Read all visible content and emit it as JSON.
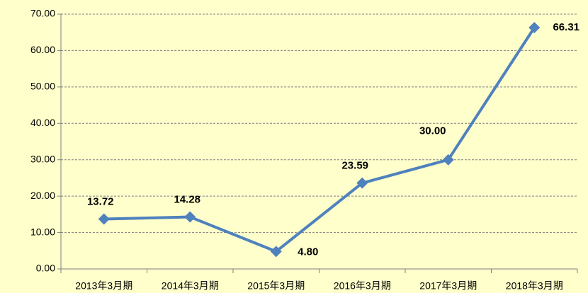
{
  "chart_data": {
    "type": "line",
    "categories": [
      "2013年3月期",
      "2014年3月期",
      "2015年3月期",
      "2016年3月期",
      "2017年3月期",
      "2018年3月期"
    ],
    "series": [
      {
        "color": "#4f81bd",
        "values": [
          13.72,
          14.28,
          4.8,
          23.59,
          30.0,
          66.31
        ],
        "value_labels": [
          "13.72",
          "14.28",
          "4.80",
          "23.59",
          "30.00",
          "66.31"
        ]
      }
    ],
    "ylim": [
      0,
      70
    ],
    "yticks": [
      {
        "value": 0,
        "label": "0.00"
      },
      {
        "value": 10,
        "label": "10.00"
      },
      {
        "value": 20,
        "label": "20.00"
      },
      {
        "value": 30,
        "label": "30.00"
      },
      {
        "value": 40,
        "label": "40.00"
      },
      {
        "value": 50,
        "label": "50.00"
      },
      {
        "value": 60,
        "label": "60.00"
      },
      {
        "value": 70,
        "label": "70.00"
      }
    ],
    "grid": true
  }
}
